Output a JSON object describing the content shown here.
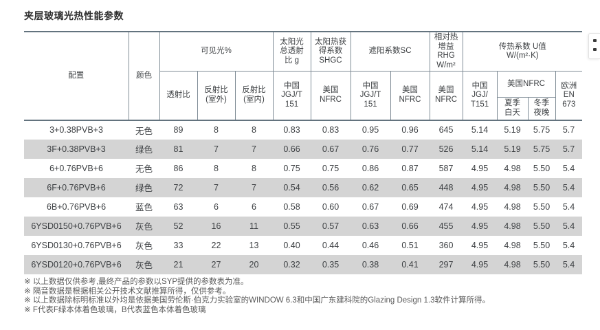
{
  "page_title": "夹层玻璃光热性能参数",
  "colors": {
    "border_dark": "#63737e",
    "border_light": "#7e8b95",
    "row_alt_bg": "#d4d4d4",
    "text": "#3d4043",
    "footnote_text": "#595959"
  },
  "table": {
    "groups": {
      "config": "配置",
      "color": "颜色",
      "visible_light": "可见光%",
      "solar_g": "太阳光\n总透射\n比 g",
      "shgc": "太阳热获\n得系数\nSHGC",
      "sc": "遮阳系数SC",
      "rhg": "相对热\n增益RHG\nW/m²",
      "u_value": "传热系数 U值\nW/(m²·K)"
    },
    "subheaders": {
      "vt": "透射比",
      "r_out": "反射比\n(室外)",
      "r_in": "反射比\n(室内)",
      "g_cn": "中国\nJGJ/T\n151",
      "shgc_us": "美国\nNFRC",
      "sc_cn": "中国\nJGJ/T\n151",
      "sc_us": "美国\nNFRC",
      "rhg_us": "美国\nNFRC",
      "u_cn": "中国\nJGJ/\nT151",
      "u_nfrc": "美国NFRC",
      "u_summer": "夏季\n白天",
      "u_winter": "冬季\n夜晚",
      "u_eu": "欧洲\nEN 673"
    },
    "column_keys": [
      "config",
      "color",
      "vt",
      "r_out",
      "r_in",
      "g_cn",
      "shgc_us",
      "sc_cn",
      "sc_us",
      "rhg_us",
      "u_cn",
      "u_summer",
      "u_winter",
      "u_eu"
    ],
    "rows": [
      [
        "3+0.38PVB+3",
        "无色",
        "89",
        "8",
        "8",
        "0.83",
        "0.83",
        "0.95",
        "0.96",
        "645",
        "5.14",
        "5.19",
        "5.75",
        "5.7"
      ],
      [
        "3F+0.38PVB+3",
        "绿色",
        "81",
        "7",
        "7",
        "0.66",
        "0.67",
        "0.76",
        "0.77",
        "526",
        "5.14",
        "5.19",
        "5.75",
        "5.7"
      ],
      [
        "6+0.76PVB+6",
        "无色",
        "86",
        "8",
        "8",
        "0.75",
        "0.75",
        "0.86",
        "0.87",
        "587",
        "4.95",
        "4.98",
        "5.50",
        "5.4"
      ],
      [
        "6F+0.76PVB+6",
        "绿色",
        "72",
        "7",
        "7",
        "0.54",
        "0.56",
        "0.62",
        "0.65",
        "448",
        "4.95",
        "4.98",
        "5.50",
        "5.4"
      ],
      [
        "6B+0.76PVB+6",
        "蓝色",
        "63",
        "6",
        "6",
        "0.58",
        "0.60",
        "0.67",
        "0.69",
        "474",
        "4.95",
        "4.98",
        "5.50",
        "5.4"
      ],
      [
        "6YSD0150+0.76PVB+6",
        "灰色",
        "52",
        "16",
        "11",
        "0.55",
        "0.57",
        "0.63",
        "0.66",
        "455",
        "4.95",
        "4.98",
        "5.50",
        "5.4"
      ],
      [
        "6YSD0130+0.76PVB+6",
        "灰色",
        "33",
        "22",
        "13",
        "0.40",
        "0.44",
        "0.46",
        "0.51",
        "360",
        "4.95",
        "4.98",
        "5.50",
        "5.4"
      ],
      [
        "6YSD0120+0.76PVB+6",
        "灰色",
        "21",
        "27",
        "20",
        "0.32",
        "0.35",
        "0.38",
        "0.41",
        "297",
        "4.95",
        "4.98",
        "5.50",
        "5.4"
      ]
    ]
  },
  "footnotes": [
    "※ 以上数据仅供参考,最终产品的参数以SYP提供的参数表为准。",
    "※ 隔音数据是根据相关公开技术文献推算所得，仅供参考。",
    "※ 以上数据除标明标准以外均是依据美国劳伦斯·伯克力实验室的WINDOW 6.3和中国广东建科院的Glazing Design 1.3软件计算所得。",
    "※ F代表F绿本体着色玻璃，B代表蓝色本体着色玻璃"
  ]
}
